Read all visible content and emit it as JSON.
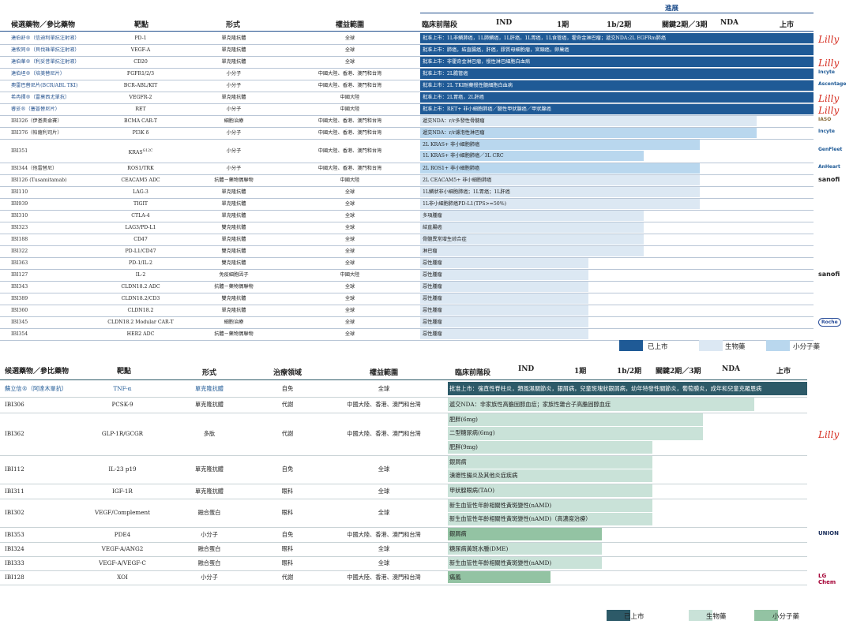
{
  "colors": {
    "approved": "#1f5a96",
    "bio_top": "#dce8f3",
    "small_top": "#b9d7ee",
    "approved_bottom": "#2d5a68",
    "bio_bottom": "#c9e2d8",
    "small_bottom": "#93c3a3",
    "lilly": "#d52b1e",
    "innovent": "#1f5a96",
    "sanofi": "#222222",
    "roche": "#2b4f9b",
    "lgchem": "#a50034"
  },
  "top_table": {
    "progress_title": "進展",
    "headers": {
      "drug": "候選藥物／參比藥物",
      "target": "靶點",
      "form": "形式",
      "rights": "權益範圍",
      "preclinical": "臨床前階段",
      "ind": "IND",
      "phase1": "1期",
      "phase1b2": "1b/2期",
      "pivotal": "關鍵2期／3期",
      "nda": "NDA",
      "marketed": "上市"
    },
    "rows": [
      {
        "drug": "達伯舒®（信迪利單抗注射液）",
        "target": "PD-1",
        "form": "單克隆抗體",
        "rights": "全球",
        "status": "批准上市：1L非鱗肺癌，1L肺鱗癌，1L肝癌，1L胃癌，1L食管癌，霍奇金淋巴瘤；遞交NDA:2L EGFRm肺癌",
        "type": "approved",
        "logo": "Lilly"
      },
      {
        "drug": "達攸同®（貝伐珠單抗注射液）",
        "target": "VEGF-A",
        "form": "單克隆抗體",
        "rights": "全球",
        "status": "批准上市：肺癌，結直腸癌，肝癌，膠質母細胞瘤，宮頸癌，卵巢癌",
        "type": "approved",
        "logo": ""
      },
      {
        "drug": "達伯華®（利妥昔單抗注射液）",
        "target": "CD20",
        "form": "單克隆抗體",
        "rights": "全球",
        "status": "批准上市：非霍奇金淋巴瘤，慢性淋巴細胞白血病",
        "type": "approved",
        "logo": "Lilly"
      },
      {
        "drug": "達伯坦®（培美替尼片）",
        "target": "FGFR1/2/3",
        "form": "小分子",
        "rights": "中國大陸、香港、澳門和台灣",
        "status": "批准上市：2L膽管癌",
        "type": "approved",
        "logo": "Incyte"
      },
      {
        "drug": "奧雷巴替尼片(BCR/ABL TKI)",
        "target": "BCR-ABL/KIT",
        "form": "小分子",
        "rights": "中國大陸、香港、澳門和台灣",
        "status": "批准上市：2L TKI耐藥慢性髓細胞白血病",
        "type": "approved",
        "logo": "Ascentage"
      },
      {
        "drug": "希冉擇®（雷莫西尤單抗）",
        "target": "VEGFR-2",
        "form": "單克隆抗體",
        "rights": "中國大陸",
        "status": "批准上市：2L胃癌，2L肝癌",
        "type": "approved",
        "logo": "Lilly"
      },
      {
        "drug": "睿妥®（塞普替尼片）",
        "target": "RET",
        "form": "小分子",
        "rights": "中國大陸",
        "status": "批准上市：RET+ 非小細胞肺癌／髓性甲狀腺癌／甲狀腺癌",
        "type": "approved",
        "logo": "Lilly"
      },
      {
        "drug": "IBI326（伊基奧侖賽）",
        "target": "BCMA CAR-T",
        "form": "細胞治療",
        "rights": "中國大陸、香港、澳門和台灣",
        "status": "遞交NDA：r/r多發性骨髓瘤",
        "type": "bio",
        "logo": "IASO"
      },
      {
        "drug": "IBI376（帕薩利司片）",
        "target": "PI3K δ",
        "form": "小分子",
        "rights": "中國大陸、香港、澳門和台灣",
        "status": "遞交NDA：r/r濾泡性淋巴瘤",
        "type": "small",
        "logo": "Incyte"
      },
      {
        "drug": "IBI351",
        "target": "KRAS",
        "target_sup": "G12C",
        "form": "小分子",
        "rights": "中國大陸、香港、澳門和台灣",
        "status": "2L KRAS+ 非小細胞肺癌",
        "status2": "1L KRAS+ 非小細胞肺癌／3L CRC",
        "type": "small2",
        "logo": "GenFleet"
      },
      {
        "drug": "IBI344（他雷替尼）",
        "target": "ROS1/TRK",
        "form": "小分子",
        "rights": "中國大陸、香港、澳門和台灣",
        "status": "2L ROS1+ 非小細胞肺癌",
        "type": "small",
        "logo": "AnHeart"
      },
      {
        "drug": "IBI126 (Tusamitamab)",
        "target": "CEACAM5 ADC",
        "form": "抗體－藥物偶聯物",
        "rights": "中國大陸",
        "status": "2L CEACAM5+ 非小細胞肺癌",
        "type": "bio",
        "logo": "sanofi"
      },
      {
        "drug": "IBI110",
        "target": "LAG-3",
        "form": "單克隆抗體",
        "rights": "全球",
        "status": "1L鱗狀非小細胞肺癌；1L胃癌；1L肝癌",
        "type": "bio",
        "logo": ""
      },
      {
        "drug": "IBI939",
        "target": "TIGIT",
        "form": "單克隆抗體",
        "rights": "全球",
        "status": "1L非小細胞肺癌PD-L1(TPS>=50%)",
        "type": "bio",
        "logo": ""
      },
      {
        "drug": "IBI310",
        "target": "CTLA-4",
        "form": "單克隆抗體",
        "rights": "全球",
        "status": "多項腫瘤",
        "type": "bio",
        "logo": ""
      },
      {
        "drug": "IBI323",
        "target": "LAG3/PD-L1",
        "form": "雙克隆抗體",
        "rights": "全球",
        "status": "結直腸癌",
        "type": "bio",
        "logo": ""
      },
      {
        "drug": "IBI188",
        "target": "CD47",
        "form": "單克隆抗體",
        "rights": "全球",
        "status": "骨髓異常增生綜合症",
        "type": "bio",
        "logo": ""
      },
      {
        "drug": "IBI322",
        "target": "PD-L1/CD47",
        "form": "雙克隆抗體",
        "rights": "全球",
        "status": "淋巴瘤",
        "type": "bio",
        "logo": ""
      },
      {
        "drug": "IBI363",
        "target": "PD-1/IL-2",
        "form": "雙克隆抗體",
        "rights": "全球",
        "status": "惡性腫瘤",
        "type": "bio",
        "logo": ""
      },
      {
        "drug": "IBI127",
        "target": "IL-2",
        "form": "免疫細胞因子",
        "rights": "中國大陸",
        "status": "惡性腫瘤",
        "type": "bio",
        "logo": "sanofi"
      },
      {
        "drug": "IBI343",
        "target": "CLDN18.2 ADC",
        "form": "抗體－藥物偶聯物",
        "rights": "全球",
        "status": "惡性腫瘤",
        "type": "bio",
        "logo": ""
      },
      {
        "drug": "IBI389",
        "target": "CLDN18.2/CD3",
        "form": "雙克隆抗體",
        "rights": "全球",
        "status": "惡性腫瘤",
        "type": "bio",
        "logo": ""
      },
      {
        "drug": "IBI360",
        "target": "CLDN18.2",
        "form": "單克隆抗體",
        "rights": "全球",
        "status": "惡性腫瘤",
        "type": "bio",
        "logo": ""
      },
      {
        "drug": "IBI345",
        "target": "CLDN18.2 Modular CAR-T",
        "form": "細胞治療",
        "rights": "全球",
        "status": "惡性腫瘤",
        "type": "bio",
        "logo": "Roche"
      },
      {
        "drug": "IBI354",
        "target": "HER2 ADC",
        "form": "抗體－藥物偶聯物",
        "rights": "全球",
        "status": "惡性腫瘤",
        "type": "bio",
        "logo": ""
      }
    ],
    "legend": {
      "approved": "已上市",
      "bio": "生物藥",
      "small": "小分子藥"
    }
  },
  "bottom_table": {
    "headers": {
      "drug": "候選藥物／參比藥物",
      "target": "靶點",
      "form": "形式",
      "area": "治療領域",
      "rights": "權益範圍",
      "preclinical": "臨床前階段",
      "ind": "IND",
      "phase1": "1期",
      "phase1b2": "1b/2期",
      "pivotal": "關鍵2期／3期",
      "nda": "NDA",
      "marketed": "上市"
    },
    "rows": [
      {
        "drug": "蘇立信®（阿達木單抗）",
        "target": "TNF-α",
        "form": "單克隆抗體",
        "area": "自免",
        "rights": "全球",
        "bars": [
          "批准上市：強直性脊柱炎，類風濕關節炎，銀屑病，兒童斑塊狀銀屑病，幼年特發性關節炎，葡萄膜炎，成年和兒童克羅恩病"
        ],
        "type": "approved",
        "logo": ""
      },
      {
        "drug": "IBI306",
        "target": "PCSK-9",
        "form": "單克隆抗體",
        "area": "代謝",
        "rights": "中國大陸、香港、澳門和台灣",
        "bars": [
          "遞交NDA：非家族性高膽固醇血症；家族性雜合子高膽固醇血症"
        ],
        "type": "bio",
        "logo": ""
      },
      {
        "drug": "IBI362",
        "target": "GLP-1R/GCGR",
        "form": "多肽",
        "area": "代謝",
        "rights": "中國大陸、香港、澳門和台灣",
        "bars": [
          "肥胖(6mg)",
          "二型糖尿病(6mg)",
          "肥胖(9mg)"
        ],
        "type": "bio3",
        "logo": "Lilly"
      },
      {
        "drug": "IBI112",
        "target": "IL-23 p19",
        "form": "單克隆抗體",
        "area": "自免",
        "rights": "全球",
        "bars": [
          "銀屑病",
          "潰瘍性腸炎及其他炎症疾病"
        ],
        "type": "bio2",
        "logo": ""
      },
      {
        "drug": "IBI311",
        "target": "IGF-1R",
        "form": "單克隆抗體",
        "area": "眼科",
        "rights": "全球",
        "bars": [
          "甲狀腺眼病(TAO)"
        ],
        "type": "bio",
        "logo": ""
      },
      {
        "drug": "IBI302",
        "target": "VEGF/Complement",
        "form": "融合蛋白",
        "area": "眼科",
        "rights": "全球",
        "bars": [
          "新生血管性年齡相關性黃斑變性(nAMD)",
          "新生血管性年齡相關性黃斑變性(nAMD)（高濃度治療）"
        ],
        "type": "bio2",
        "logo": ""
      },
      {
        "drug": "IBI353",
        "target": "PDE4",
        "form": "小分子",
        "area": "自免",
        "rights": "中國大陸、香港、澳門和台灣",
        "bars": [
          "銀屑病"
        ],
        "type": "small",
        "logo": "UNION"
      },
      {
        "drug": "IBI324",
        "target": "VEGF-A/ANG2",
        "form": "融合蛋白",
        "area": "眼科",
        "rights": "全球",
        "bars": [
          "糖尿病黃斑水腫(DME)"
        ],
        "type": "bio",
        "logo": ""
      },
      {
        "drug": "IBI333",
        "target": "VEGF-A/VEGF-C",
        "form": "融合蛋白",
        "area": "眼科",
        "rights": "全球",
        "bars": [
          "新生血管性年齡相關性黃斑變性(nAMD)"
        ],
        "type": "bio",
        "logo": ""
      },
      {
        "drug": "IBI128",
        "target": "XOI",
        "form": "小分子",
        "area": "代謝",
        "rights": "中國大陸、香港、澳門和台灣",
        "bars": [
          "痛風"
        ],
        "type": "small",
        "logo": "LG Chem"
      }
    ],
    "legend": {
      "approved": "已上市",
      "bio": "生物藥",
      "small": "小分子藥"
    }
  }
}
